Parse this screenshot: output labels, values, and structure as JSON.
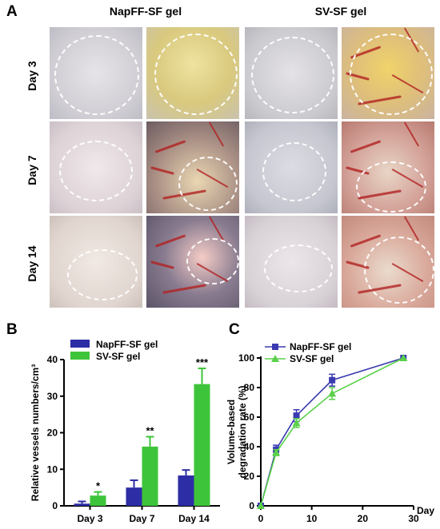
{
  "panel_labels": [
    "A",
    "B",
    "C"
  ],
  "panel_a": {
    "columns": [
      "NapFF-SF gel",
      "SV-SF gel"
    ],
    "rows": [
      "Day 3",
      "Day 7",
      "Day 14"
    ],
    "colors": {
      "skin": "#d8d6d8",
      "gel_yellow": "#d9c97e",
      "vessel_red": "#b22222"
    }
  },
  "chart_data": [
    {
      "type": "bar",
      "ylabel": "Relative vessels numbers/cm³",
      "categories": [
        "Day 3",
        "Day 7",
        "Day 14"
      ],
      "ylim": [
        0,
        40
      ],
      "yticks": [
        "0",
        "10",
        "20",
        "30",
        "40"
      ],
      "series": [
        {
          "name": "NapFF-SF gel",
          "color": "#2d2da6",
          "values": [
            0.6,
            5.0,
            8.3
          ],
          "errors": [
            0.6,
            2.0,
            1.5
          ]
        },
        {
          "name": "SV-SF gel",
          "color": "#3ec43a",
          "values": [
            2.8,
            16.2,
            33.3
          ],
          "errors": [
            1.0,
            2.7,
            4.3
          ]
        }
      ],
      "significance": [
        "*",
        "**",
        "***"
      ],
      "legend": "top-left"
    },
    {
      "type": "line",
      "xlabel": "Day",
      "ylabel": "Volume-based degradation rate (%)",
      "x": [
        0,
        3,
        7,
        14,
        28
      ],
      "xlim": [
        0,
        30
      ],
      "ylim": [
        0,
        100
      ],
      "xticks": [
        "0",
        "10",
        "20",
        "30"
      ],
      "yticks": [
        "0",
        "20",
        "40",
        "60",
        "80",
        "100"
      ],
      "series": [
        {
          "name": "NapFF-SF gel",
          "color": "#3a3ab0",
          "marker": "square",
          "values": [
            0,
            38,
            61,
            85,
            100
          ],
          "errors": [
            0,
            3,
            4,
            4,
            0
          ]
        },
        {
          "name": "SV-SF gel",
          "color": "#5ad14a",
          "marker": "triangle",
          "values": [
            0,
            36,
            56,
            76,
            100
          ],
          "errors": [
            0,
            2,
            3,
            4,
            0
          ]
        }
      ],
      "legend": "top-left"
    }
  ]
}
